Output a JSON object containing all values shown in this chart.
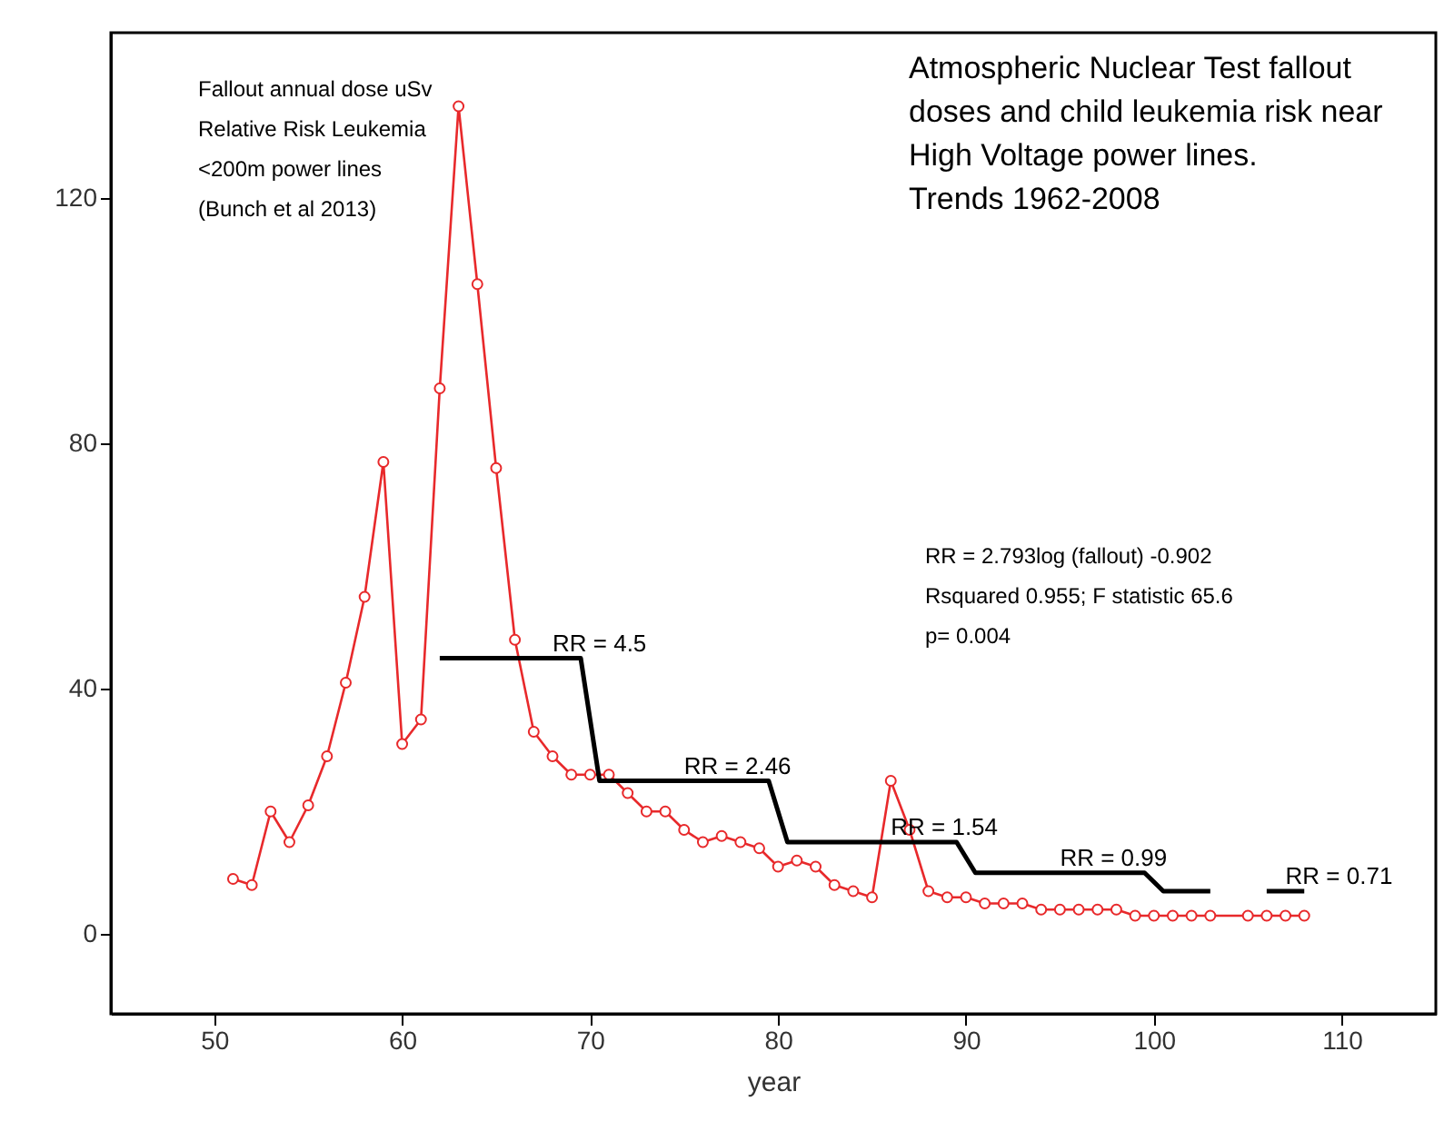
{
  "chart_data": {
    "type": "line",
    "title": "Atmospheric Nuclear Test fallout\ndoses and child leukemia risk near\nHigh Voltage power lines.\nTrends 1962-2008",
    "xlabel": "year",
    "xlim": [
      44.5,
      115
    ],
    "xticks": [
      50,
      60,
      70,
      80,
      90,
      100,
      110
    ],
    "ylim": [
      -13,
      147
    ],
    "yticks": [
      0,
      40,
      80,
      120
    ],
    "series": [
      {
        "color": "#e8292b",
        "marker": "circle",
        "x": [
          51,
          52,
          53,
          54,
          55,
          56,
          57,
          58,
          59,
          60,
          61,
          62,
          63,
          64,
          65,
          66,
          67,
          68,
          69,
          70,
          71,
          72,
          73,
          74,
          75,
          76,
          77,
          78,
          79,
          80,
          81,
          82,
          83,
          84,
          85,
          86,
          87,
          88,
          89,
          90,
          91,
          92,
          93,
          94,
          95,
          96,
          97,
          98,
          99,
          100,
          101,
          102,
          103,
          105,
          106,
          107,
          108
        ],
        "values": [
          9,
          8,
          20,
          15,
          21,
          29,
          41,
          55,
          77,
          31,
          35,
          89,
          135,
          106,
          76,
          48,
          33,
          29,
          26,
          26,
          26,
          23,
          20,
          20,
          17,
          15,
          16,
          15,
          14,
          11,
          12,
          11,
          8,
          7,
          6,
          25,
          17,
          7,
          6,
          6,
          5,
          5,
          5,
          4,
          4,
          4,
          4,
          4,
          3,
          3,
          3,
          3,
          3,
          3,
          3,
          3,
          3
        ]
      },
      {
        "color": "#000000",
        "marker": "none",
        "x": [
          62,
          69.5,
          70.5,
          79.5,
          80.5,
          89.5,
          90.5,
          99.5,
          100.5,
          103
        ],
        "values": [
          45,
          45,
          25,
          25,
          15,
          15,
          10,
          10,
          7,
          7
        ]
      },
      {
        "color": "#000000",
        "marker": "none",
        "x": [
          106,
          108
        ],
        "values": [
          7,
          7
        ]
      }
    ],
    "annotations": [
      "Fallout annual dose uSv\nRelative Risk Leukemia\n<200m power lines\n(Bunch et al 2013)",
      "RR = 2.793log (fallout) -0.902\nRsquared 0.955; F statistic 65.6\np= 0.004",
      {
        "text": "RR = 4.5",
        "x": 68,
        "y": 45
      },
      {
        "text": "RR = 2.46",
        "x": 75,
        "y": 25
      },
      {
        "text": "RR = 1.54",
        "x": 86,
        "y": 15
      },
      {
        "text": "RR = 0.99",
        "x": 95,
        "y": 10
      },
      {
        "text": "RR = 0.71",
        "x": 107,
        "y": 7
      }
    ]
  }
}
